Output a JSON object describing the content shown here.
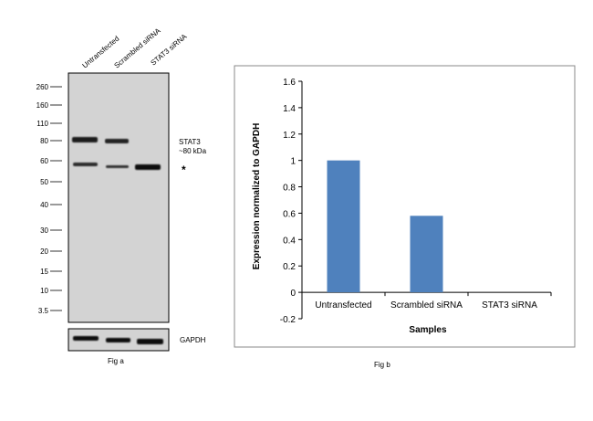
{
  "blot": {
    "lanes": [
      "Untransfected",
      "Scrambled siRNA",
      "STAT3  siRNA"
    ],
    "markers": [
      "260",
      "160",
      "110",
      "80",
      "60",
      "50",
      "40",
      "30",
      "20",
      "15",
      "10",
      "3.5"
    ],
    "target_label": "STAT3",
    "target_size": "~80 kDa",
    "nonspecific_marker": "*",
    "loading_control": "GAPDH",
    "caption": "Fig a"
  },
  "chart_data": {
    "type": "bar",
    "categories": [
      "Untransfected",
      "Scrambled siRNA",
      "STAT3 siRNA"
    ],
    "values": [
      1.0,
      0.58,
      0.0
    ],
    "xlabel": "Samples",
    "ylabel": "Expression normalized to GAPDH",
    "ylim": [
      -0.2,
      1.6
    ],
    "yticks": [
      "-0.2",
      "0",
      "0.2",
      "0.4",
      "0.6",
      "0.8",
      "1",
      "1.2",
      "1.4",
      "1.6"
    ],
    "grid": false,
    "bar_color": "#4f81bd",
    "caption": "Fig b"
  }
}
